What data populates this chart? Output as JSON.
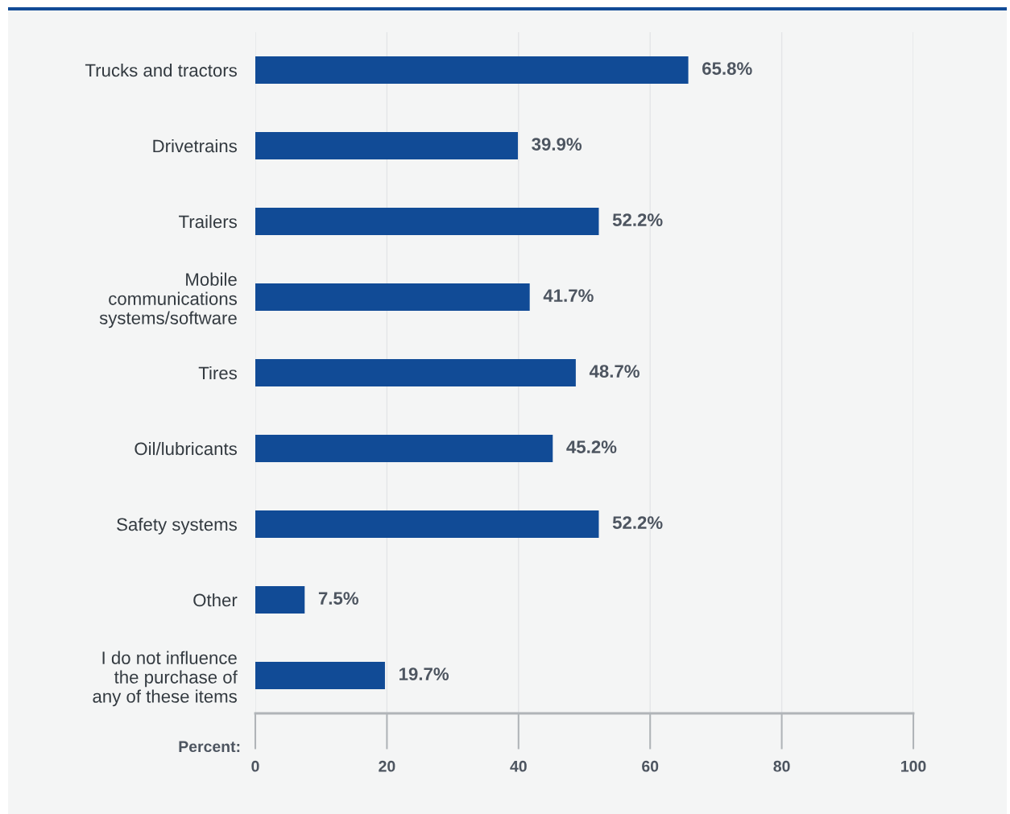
{
  "chart_data": {
    "type": "bar",
    "orientation": "horizontal",
    "xlabel": "Percent:",
    "categories": [
      "Trucks and tractors",
      "Drivetrains",
      "Trailers",
      "Mobile\ncommunications\nsystems/software",
      "Tires",
      "Oil/lubricants",
      "Safety systems",
      "Other",
      "I do not influence\nthe purchase of\nany of these items"
    ],
    "values": [
      65.8,
      39.9,
      52.2,
      41.7,
      48.7,
      45.2,
      52.2,
      7.5,
      19.7
    ],
    "value_labels": [
      "65.8%",
      "39.9%",
      "52.2%",
      "41.7%",
      "48.7%",
      "45.2%",
      "52.2%",
      "7.5%",
      "19.7%"
    ],
    "color": "#114b96",
    "xlim": [
      0,
      100
    ],
    "xticks": [
      0,
      20,
      40,
      60,
      80,
      100
    ],
    "grid": "x"
  }
}
